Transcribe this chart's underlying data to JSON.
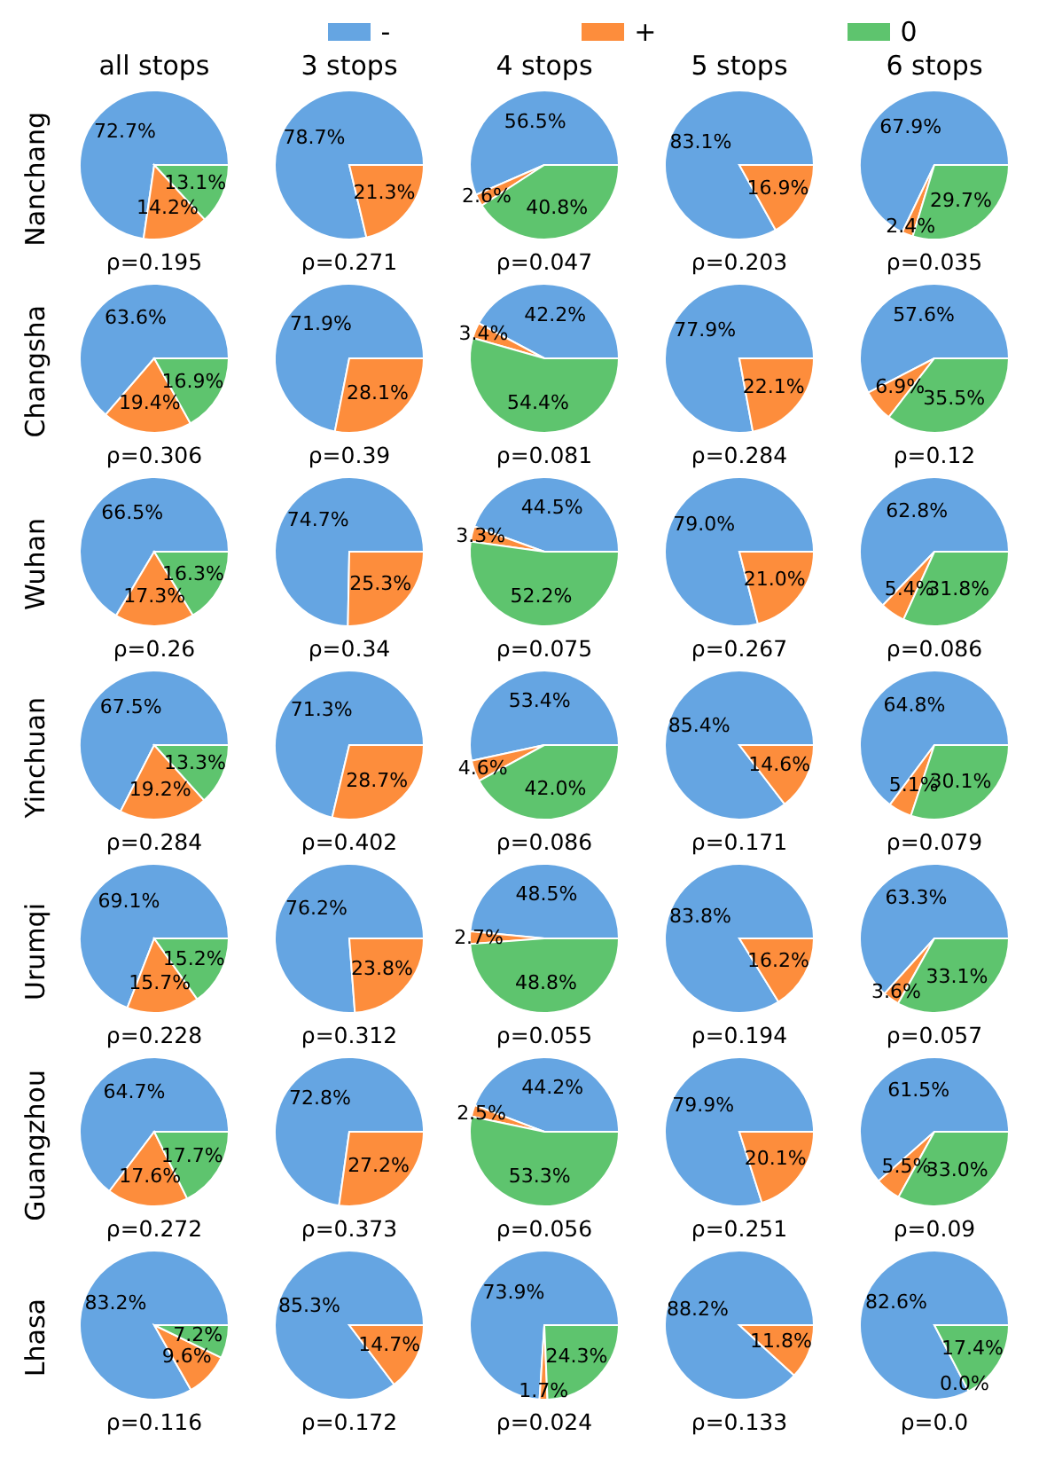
{
  "chart_data": [
    {
      "type": "pie",
      "title": "all stops",
      "ylabel": "Nanchang",
      "legend": "top",
      "categories": [
        "-",
        "+",
        "0"
      ],
      "values": [
        72.7,
        14.2,
        13.1
      ],
      "value_labels": [
        "72.7%",
        "14.2%",
        "13.1%"
      ],
      "colors": [
        "#65a5e2",
        "#fd8d3c",
        "#5ec46e"
      ],
      "xlabel": "ρ=0.195"
    },
    {
      "type": "pie",
      "title": "3 stops",
      "categories": [
        null,
        null
      ],
      "values": [
        78.7,
        21.3
      ],
      "value_labels": [
        "78.7%",
        "21.3%"
      ],
      "colors": [
        "#65a5e2",
        "#fd8d3c"
      ],
      "xlabel": "ρ=0.271"
    },
    {
      "type": "pie",
      "title": "4 stops",
      "categories": [
        null,
        null,
        null
      ],
      "values": [
        56.5,
        2.6,
        40.8
      ],
      "value_labels": [
        "56.5%",
        "2.6%",
        "40.8%"
      ],
      "colors": [
        "#65a5e2",
        "#fd8d3c",
        "#5ec46e"
      ],
      "xlabel": "ρ=0.047"
    },
    {
      "type": "pie",
      "title": "5 stops",
      "categories": [
        null,
        null
      ],
      "values": [
        83.1,
        16.9
      ],
      "value_labels": [
        "83.1%",
        "16.9%"
      ],
      "colors": [
        "#65a5e2",
        "#fd8d3c"
      ],
      "xlabel": "ρ=0.203"
    },
    {
      "type": "pie",
      "title": "6 stops",
      "categories": [
        null,
        null,
        null
      ],
      "values": [
        67.9,
        2.4,
        29.7
      ],
      "value_labels": [
        "67.9%",
        "2.4%",
        "29.7%"
      ],
      "colors": [
        "#65a5e2",
        "#fd8d3c",
        "#5ec46e"
      ],
      "xlabel": "ρ=0.035"
    },
    {
      "type": "pie",
      "ylabel": "Changsha",
      "categories": [
        null,
        null,
        null
      ],
      "values": [
        63.6,
        19.4,
        16.9
      ],
      "value_labels": [
        "63.6%",
        "19.4%",
        "16.9%"
      ],
      "colors": [
        "#65a5e2",
        "#fd8d3c",
        "#5ec46e"
      ],
      "xlabel": "ρ=0.306"
    },
    {
      "type": "pie",
      "categories": [
        null,
        null
      ],
      "values": [
        71.9,
        28.1
      ],
      "value_labels": [
        "71.9%",
        "28.1%"
      ],
      "colors": [
        "#65a5e2",
        "#fd8d3c"
      ],
      "xlabel": "ρ=0.39"
    },
    {
      "type": "pie",
      "categories": [
        null,
        null,
        null
      ],
      "values": [
        42.2,
        3.4,
        54.4
      ],
      "value_labels": [
        "42.2%",
        "3.4%",
        "54.4%"
      ],
      "colors": [
        "#65a5e2",
        "#fd8d3c",
        "#5ec46e"
      ],
      "xlabel": "ρ=0.081"
    },
    {
      "type": "pie",
      "categories": [
        null,
        null
      ],
      "values": [
        77.9,
        22.1
      ],
      "value_labels": [
        "77.9%",
        "22.1%"
      ],
      "colors": [
        "#65a5e2",
        "#fd8d3c"
      ],
      "xlabel": "ρ=0.284"
    },
    {
      "type": "pie",
      "categories": [
        null,
        null,
        null
      ],
      "values": [
        57.6,
        6.9,
        35.5
      ],
      "value_labels": [
        "57.6%",
        "6.9%",
        "35.5%"
      ],
      "colors": [
        "#65a5e2",
        "#fd8d3c",
        "#5ec46e"
      ],
      "xlabel": "ρ=0.12"
    },
    {
      "type": "pie",
      "ylabel": "Wuhan",
      "categories": [
        null,
        null,
        null
      ],
      "values": [
        66.5,
        17.3,
        16.3
      ],
      "value_labels": [
        "66.5%",
        "17.3%",
        "16.3%"
      ],
      "colors": [
        "#65a5e2",
        "#fd8d3c",
        "#5ec46e"
      ],
      "xlabel": "ρ=0.26"
    },
    {
      "type": "pie",
      "categories": [
        null,
        null
      ],
      "values": [
        74.7,
        25.3
      ],
      "value_labels": [
        "74.7%",
        "25.3%"
      ],
      "colors": [
        "#65a5e2",
        "#fd8d3c"
      ],
      "xlabel": "ρ=0.34"
    },
    {
      "type": "pie",
      "categories": [
        null,
        null,
        null
      ],
      "values": [
        44.5,
        3.3,
        52.2
      ],
      "value_labels": [
        "44.5%",
        "3.3%",
        "52.2%"
      ],
      "colors": [
        "#65a5e2",
        "#fd8d3c",
        "#5ec46e"
      ],
      "xlabel": "ρ=0.075"
    },
    {
      "type": "pie",
      "categories": [
        null,
        null
      ],
      "values": [
        79.0,
        21.0
      ],
      "value_labels": [
        "79.0%",
        "21.0%"
      ],
      "colors": [
        "#65a5e2",
        "#fd8d3c"
      ],
      "xlabel": "ρ=0.267"
    },
    {
      "type": "pie",
      "categories": [
        null,
        null,
        null
      ],
      "values": [
        62.8,
        5.4,
        31.8
      ],
      "value_labels": [
        "62.8%",
        "5.4%",
        "31.8%"
      ],
      "colors": [
        "#65a5e2",
        "#fd8d3c",
        "#5ec46e"
      ],
      "xlabel": "ρ=0.086"
    },
    {
      "type": "pie",
      "ylabel": "Yinchuan",
      "categories": [
        null,
        null,
        null
      ],
      "values": [
        67.5,
        19.2,
        13.3
      ],
      "value_labels": [
        "67.5%",
        "19.2%",
        "13.3%"
      ],
      "colors": [
        "#65a5e2",
        "#fd8d3c",
        "#5ec46e"
      ],
      "xlabel": "ρ=0.284"
    },
    {
      "type": "pie",
      "categories": [
        null,
        null
      ],
      "values": [
        71.3,
        28.7
      ],
      "value_labels": [
        "71.3%",
        "28.7%"
      ],
      "colors": [
        "#65a5e2",
        "#fd8d3c"
      ],
      "xlabel": "ρ=0.402"
    },
    {
      "type": "pie",
      "categories": [
        null,
        null,
        null
      ],
      "values": [
        53.4,
        4.6,
        42.0
      ],
      "value_labels": [
        "53.4%",
        "4.6%",
        "42.0%"
      ],
      "colors": [
        "#65a5e2",
        "#fd8d3c",
        "#5ec46e"
      ],
      "xlabel": "ρ=0.086"
    },
    {
      "type": "pie",
      "categories": [
        null,
        null
      ],
      "values": [
        85.4,
        14.6
      ],
      "value_labels": [
        "85.4%",
        "14.6%"
      ],
      "colors": [
        "#65a5e2",
        "#fd8d3c"
      ],
      "xlabel": "ρ=0.171"
    },
    {
      "type": "pie",
      "categories": [
        null,
        null,
        null
      ],
      "values": [
        64.8,
        5.1,
        30.1
      ],
      "value_labels": [
        "64.8%",
        "5.1%",
        "30.1%"
      ],
      "colors": [
        "#65a5e2",
        "#fd8d3c",
        "#5ec46e"
      ],
      "xlabel": "ρ=0.079"
    },
    {
      "type": "pie",
      "ylabel": "Urumqi",
      "categories": [
        null,
        null,
        null
      ],
      "values": [
        69.1,
        15.7,
        15.2
      ],
      "value_labels": [
        "69.1%",
        "15.7%",
        "15.2%"
      ],
      "colors": [
        "#65a5e2",
        "#fd8d3c",
        "#5ec46e"
      ],
      "xlabel": "ρ=0.228"
    },
    {
      "type": "pie",
      "categories": [
        null,
        null
      ],
      "values": [
        76.2,
        23.8
      ],
      "value_labels": [
        "76.2%",
        "23.8%"
      ],
      "colors": [
        "#65a5e2",
        "#fd8d3c"
      ],
      "xlabel": "ρ=0.312"
    },
    {
      "type": "pie",
      "categories": [
        null,
        null,
        null
      ],
      "values": [
        48.5,
        2.7,
        48.8
      ],
      "value_labels": [
        "48.5%",
        "2.7%",
        "48.8%"
      ],
      "colors": [
        "#65a5e2",
        "#fd8d3c",
        "#5ec46e"
      ],
      "xlabel": "ρ=0.055"
    },
    {
      "type": "pie",
      "categories": [
        null,
        null
      ],
      "values": [
        83.8,
        16.2
      ],
      "value_labels": [
        "83.8%",
        "16.2%"
      ],
      "colors": [
        "#65a5e2",
        "#fd8d3c"
      ],
      "xlabel": "ρ=0.194"
    },
    {
      "type": "pie",
      "categories": [
        null,
        null,
        null
      ],
      "values": [
        63.3,
        3.6,
        33.1
      ],
      "value_labels": [
        "63.3%",
        "3.6%",
        "33.1%"
      ],
      "colors": [
        "#65a5e2",
        "#fd8d3c",
        "#5ec46e"
      ],
      "xlabel": "ρ=0.057"
    },
    {
      "type": "pie",
      "ylabel": "Guangzhou",
      "categories": [
        null,
        null,
        null
      ],
      "values": [
        64.7,
        17.6,
        17.7
      ],
      "value_labels": [
        "64.7%",
        "17.6%",
        "17.7%"
      ],
      "colors": [
        "#65a5e2",
        "#fd8d3c",
        "#5ec46e"
      ],
      "xlabel": "ρ=0.272"
    },
    {
      "type": "pie",
      "categories": [
        null,
        null
      ],
      "values": [
        72.8,
        27.2
      ],
      "value_labels": [
        "72.8%",
        "27.2%"
      ],
      "colors": [
        "#65a5e2",
        "#fd8d3c"
      ],
      "xlabel": "ρ=0.373"
    },
    {
      "type": "pie",
      "categories": [
        null,
        null,
        null
      ],
      "values": [
        44.2,
        2.5,
        53.3
      ],
      "value_labels": [
        "44.2%",
        "2.5%",
        "53.3%"
      ],
      "colors": [
        "#65a5e2",
        "#fd8d3c",
        "#5ec46e"
      ],
      "xlabel": "ρ=0.056"
    },
    {
      "type": "pie",
      "categories": [
        null,
        null
      ],
      "values": [
        79.9,
        20.1
      ],
      "value_labels": [
        "79.9%",
        "20.1%"
      ],
      "colors": [
        "#65a5e2",
        "#fd8d3c"
      ],
      "xlabel": "ρ=0.251"
    },
    {
      "type": "pie",
      "categories": [
        null,
        null,
        null
      ],
      "values": [
        61.5,
        5.5,
        33.0
      ],
      "value_labels": [
        "61.5%",
        "5.5%",
        "33.0%"
      ],
      "colors": [
        "#65a5e2",
        "#fd8d3c",
        "#5ec46e"
      ],
      "xlabel": "ρ=0.09"
    },
    {
      "type": "pie",
      "ylabel": "Lhasa",
      "categories": [
        null,
        null,
        null
      ],
      "values": [
        83.2,
        9.6,
        7.2
      ],
      "value_labels": [
        "83.2%",
        "9.6%",
        "7.2%"
      ],
      "colors": [
        "#65a5e2",
        "#fd8d3c",
        "#5ec46e"
      ],
      "xlabel": "ρ=0.116"
    },
    {
      "type": "pie",
      "categories": [
        null,
        null
      ],
      "values": [
        85.3,
        14.7
      ],
      "value_labels": [
        "85.3%",
        "14.7%"
      ],
      "colors": [
        "#65a5e2",
        "#fd8d3c"
      ],
      "xlabel": "ρ=0.172"
    },
    {
      "type": "pie",
      "categories": [
        null,
        null,
        null
      ],
      "values": [
        73.9,
        1.7,
        24.3
      ],
      "value_labels": [
        "73.9%",
        "1.7%",
        "24.3%"
      ],
      "colors": [
        "#65a5e2",
        "#fd8d3c",
        "#5ec46e"
      ],
      "xlabel": "ρ=0.024"
    },
    {
      "type": "pie",
      "categories": [
        null,
        null
      ],
      "values": [
        88.2,
        11.8
      ],
      "value_labels": [
        "88.2%",
        "11.8%"
      ],
      "colors": [
        "#65a5e2",
        "#fd8d3c"
      ],
      "xlabel": "ρ=0.133"
    },
    {
      "type": "pie",
      "categories": [
        null,
        null,
        null
      ],
      "values": [
        82.6,
        0.0,
        17.4
      ],
      "value_labels": [
        "82.6%",
        "0.0%",
        "17.4%"
      ],
      "colors": [
        "#65a5e2",
        "#fd8d3c",
        "#5ec46e"
      ],
      "xlabel": "ρ=0.0"
    }
  ]
}
